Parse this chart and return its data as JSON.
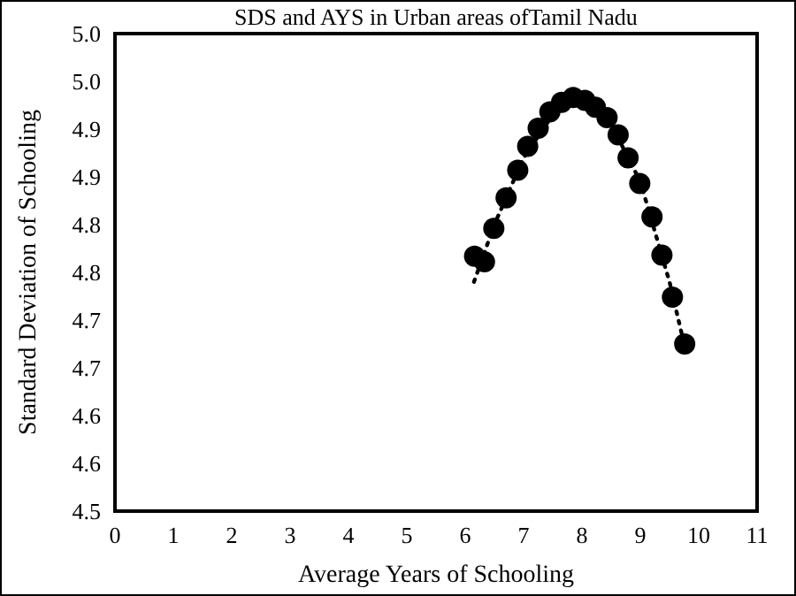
{
  "chart_data": {
    "type": "scatter",
    "title": "SDS and AYS in Urban areas ofTamil Nadu",
    "xlabel": "Average Years of Schooling",
    "ylabel": "Standard Deviation of Schooling",
    "xlim": [
      0,
      11
    ],
    "xticks": [
      0,
      1,
      2,
      3,
      4,
      5,
      6,
      7,
      8,
      9,
      10,
      11
    ],
    "ylim": [
      4.5,
      5.0
    ],
    "yticks": [
      4.5,
      {
        "value": 4.55,
        "label": "4.6"
      },
      4.6,
      {
        "value": 4.65,
        "label": "4.7"
      },
      4.7,
      {
        "value": 4.75,
        "label": "4.8"
      },
      4.8,
      {
        "value": 4.85,
        "label": "4.9"
      },
      4.9,
      {
        "value": 4.95,
        "label": "5.0"
      },
      {
        "value": 5.0,
        "label": "5.0"
      }
    ],
    "grid": false,
    "series": [
      {
        "color": "#000000",
        "marker": "circle",
        "x": [
          6.16,
          6.33,
          6.49,
          6.7,
          6.9,
          7.07,
          7.25,
          7.45,
          7.65,
          7.85,
          8.05,
          8.23,
          8.43,
          8.62,
          8.79,
          8.99,
          9.2,
          9.37,
          9.55,
          9.76
        ],
        "values": [
          4.767,
          4.761,
          4.796,
          4.828,
          4.857,
          4.882,
          4.901,
          4.918,
          4.928,
          4.933,
          4.93,
          4.923,
          4.912,
          4.894,
          4.87,
          4.843,
          4.808,
          4.768,
          4.724,
          4.675
        ]
      },
      {
        "type": "line",
        "color": "#000000",
        "line_style": "dotted",
        "x": [
          6.15,
          6.5,
          7.0,
          7.5,
          8.0,
          8.5,
          9.0,
          9.5,
          9.75
        ],
        "values": [
          4.74,
          4.8,
          4.87,
          4.915,
          4.932,
          4.905,
          4.845,
          4.74,
          4.675
        ]
      }
    ]
  }
}
